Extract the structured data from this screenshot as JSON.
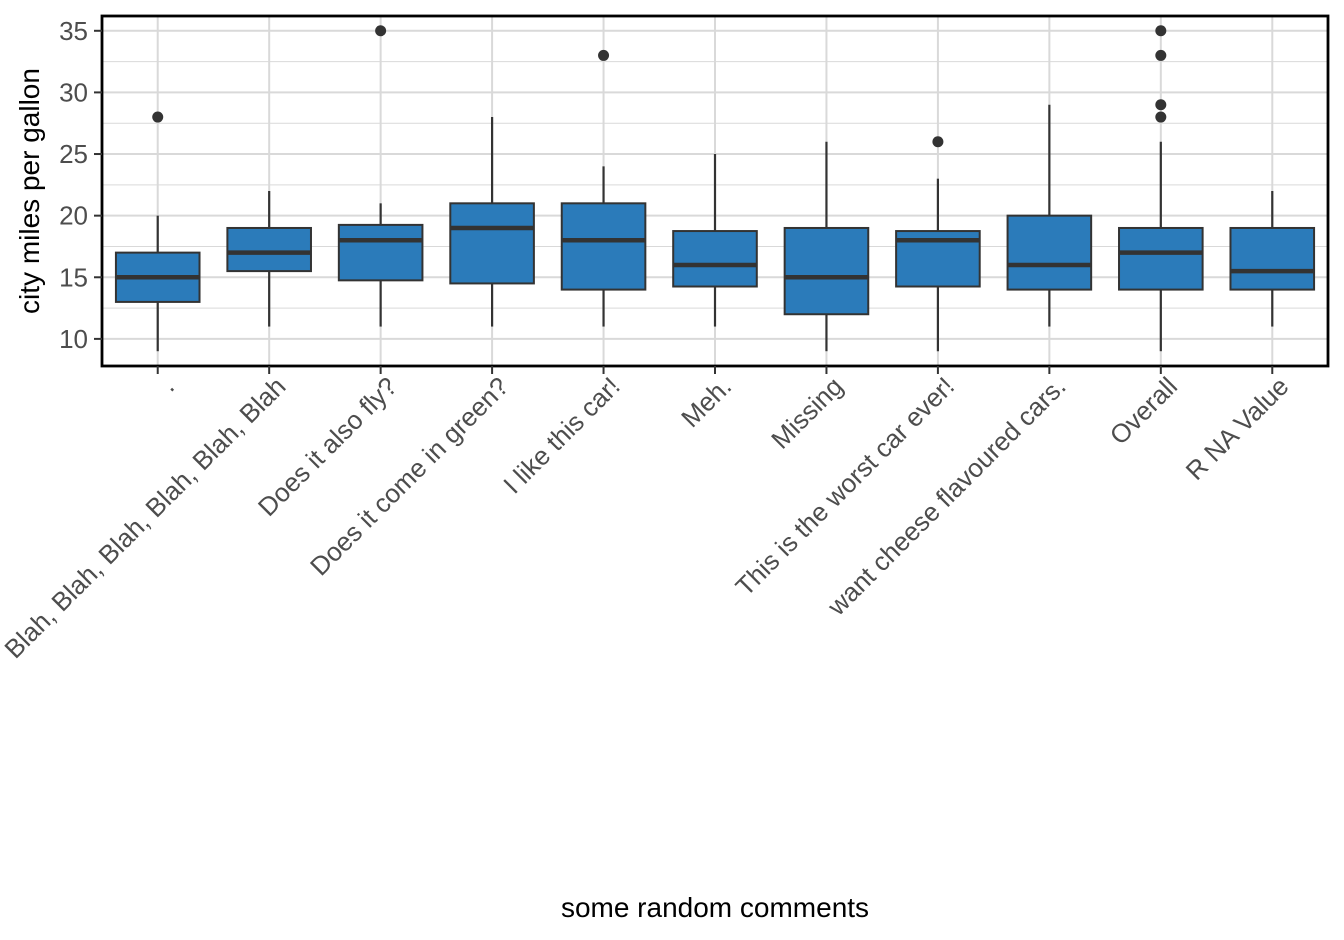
{
  "chart_data": {
    "type": "boxplot",
    "xlabel": "some random comments",
    "ylabel": "city miles per gallon",
    "ylim": [
      7.8,
      36.2
    ],
    "yticks": [
      10,
      15,
      20,
      25,
      30,
      35
    ],
    "grid": true,
    "box_fill": "#2b7bba",
    "line_color": "#333333",
    "categories": [
      ".",
      "Blah, Blah, Blah, Blah, Blah, Blah",
      "Does it also fly?",
      "Does it come in green?",
      "I like this car!",
      "Meh.",
      "Missing",
      "This is the worst car ever!",
      "want cheese flavoured cars.",
      "Overall",
      "R NA Value"
    ],
    "boxes": [
      {
        "min": 9,
        "q1": 13,
        "median": 15,
        "q3": 17,
        "max": 20,
        "outliers": [
          28
        ]
      },
      {
        "min": 11,
        "q1": 15.5,
        "median": 17,
        "q3": 19,
        "max": 22,
        "outliers": []
      },
      {
        "min": 11,
        "q1": 14.75,
        "median": 18,
        "q3": 19.25,
        "max": 21,
        "outliers": [
          35
        ]
      },
      {
        "min": 11,
        "q1": 14.5,
        "median": 19,
        "q3": 21,
        "max": 28,
        "outliers": []
      },
      {
        "min": 11,
        "q1": 14,
        "median": 18,
        "q3": 21,
        "max": 24,
        "outliers": [
          33
        ]
      },
      {
        "min": 11,
        "q1": 14.25,
        "median": 16,
        "q3": 18.75,
        "max": 25,
        "outliers": []
      },
      {
        "min": 9,
        "q1": 12,
        "median": 15,
        "q3": 19,
        "max": 26,
        "outliers": []
      },
      {
        "min": 9,
        "q1": 14.25,
        "median": 18,
        "q3": 18.75,
        "max": 23,
        "outliers": [
          26
        ]
      },
      {
        "min": 11,
        "q1": 14,
        "median": 16,
        "q3": 20,
        "max": 29,
        "outliers": []
      },
      {
        "min": 9,
        "q1": 14,
        "median": 17,
        "q3": 19,
        "max": 26,
        "outliers": [
          28,
          29,
          33,
          35
        ]
      },
      {
        "min": 11,
        "q1": 14,
        "median": 15.5,
        "q3": 19,
        "max": 22,
        "outliers": []
      }
    ]
  }
}
